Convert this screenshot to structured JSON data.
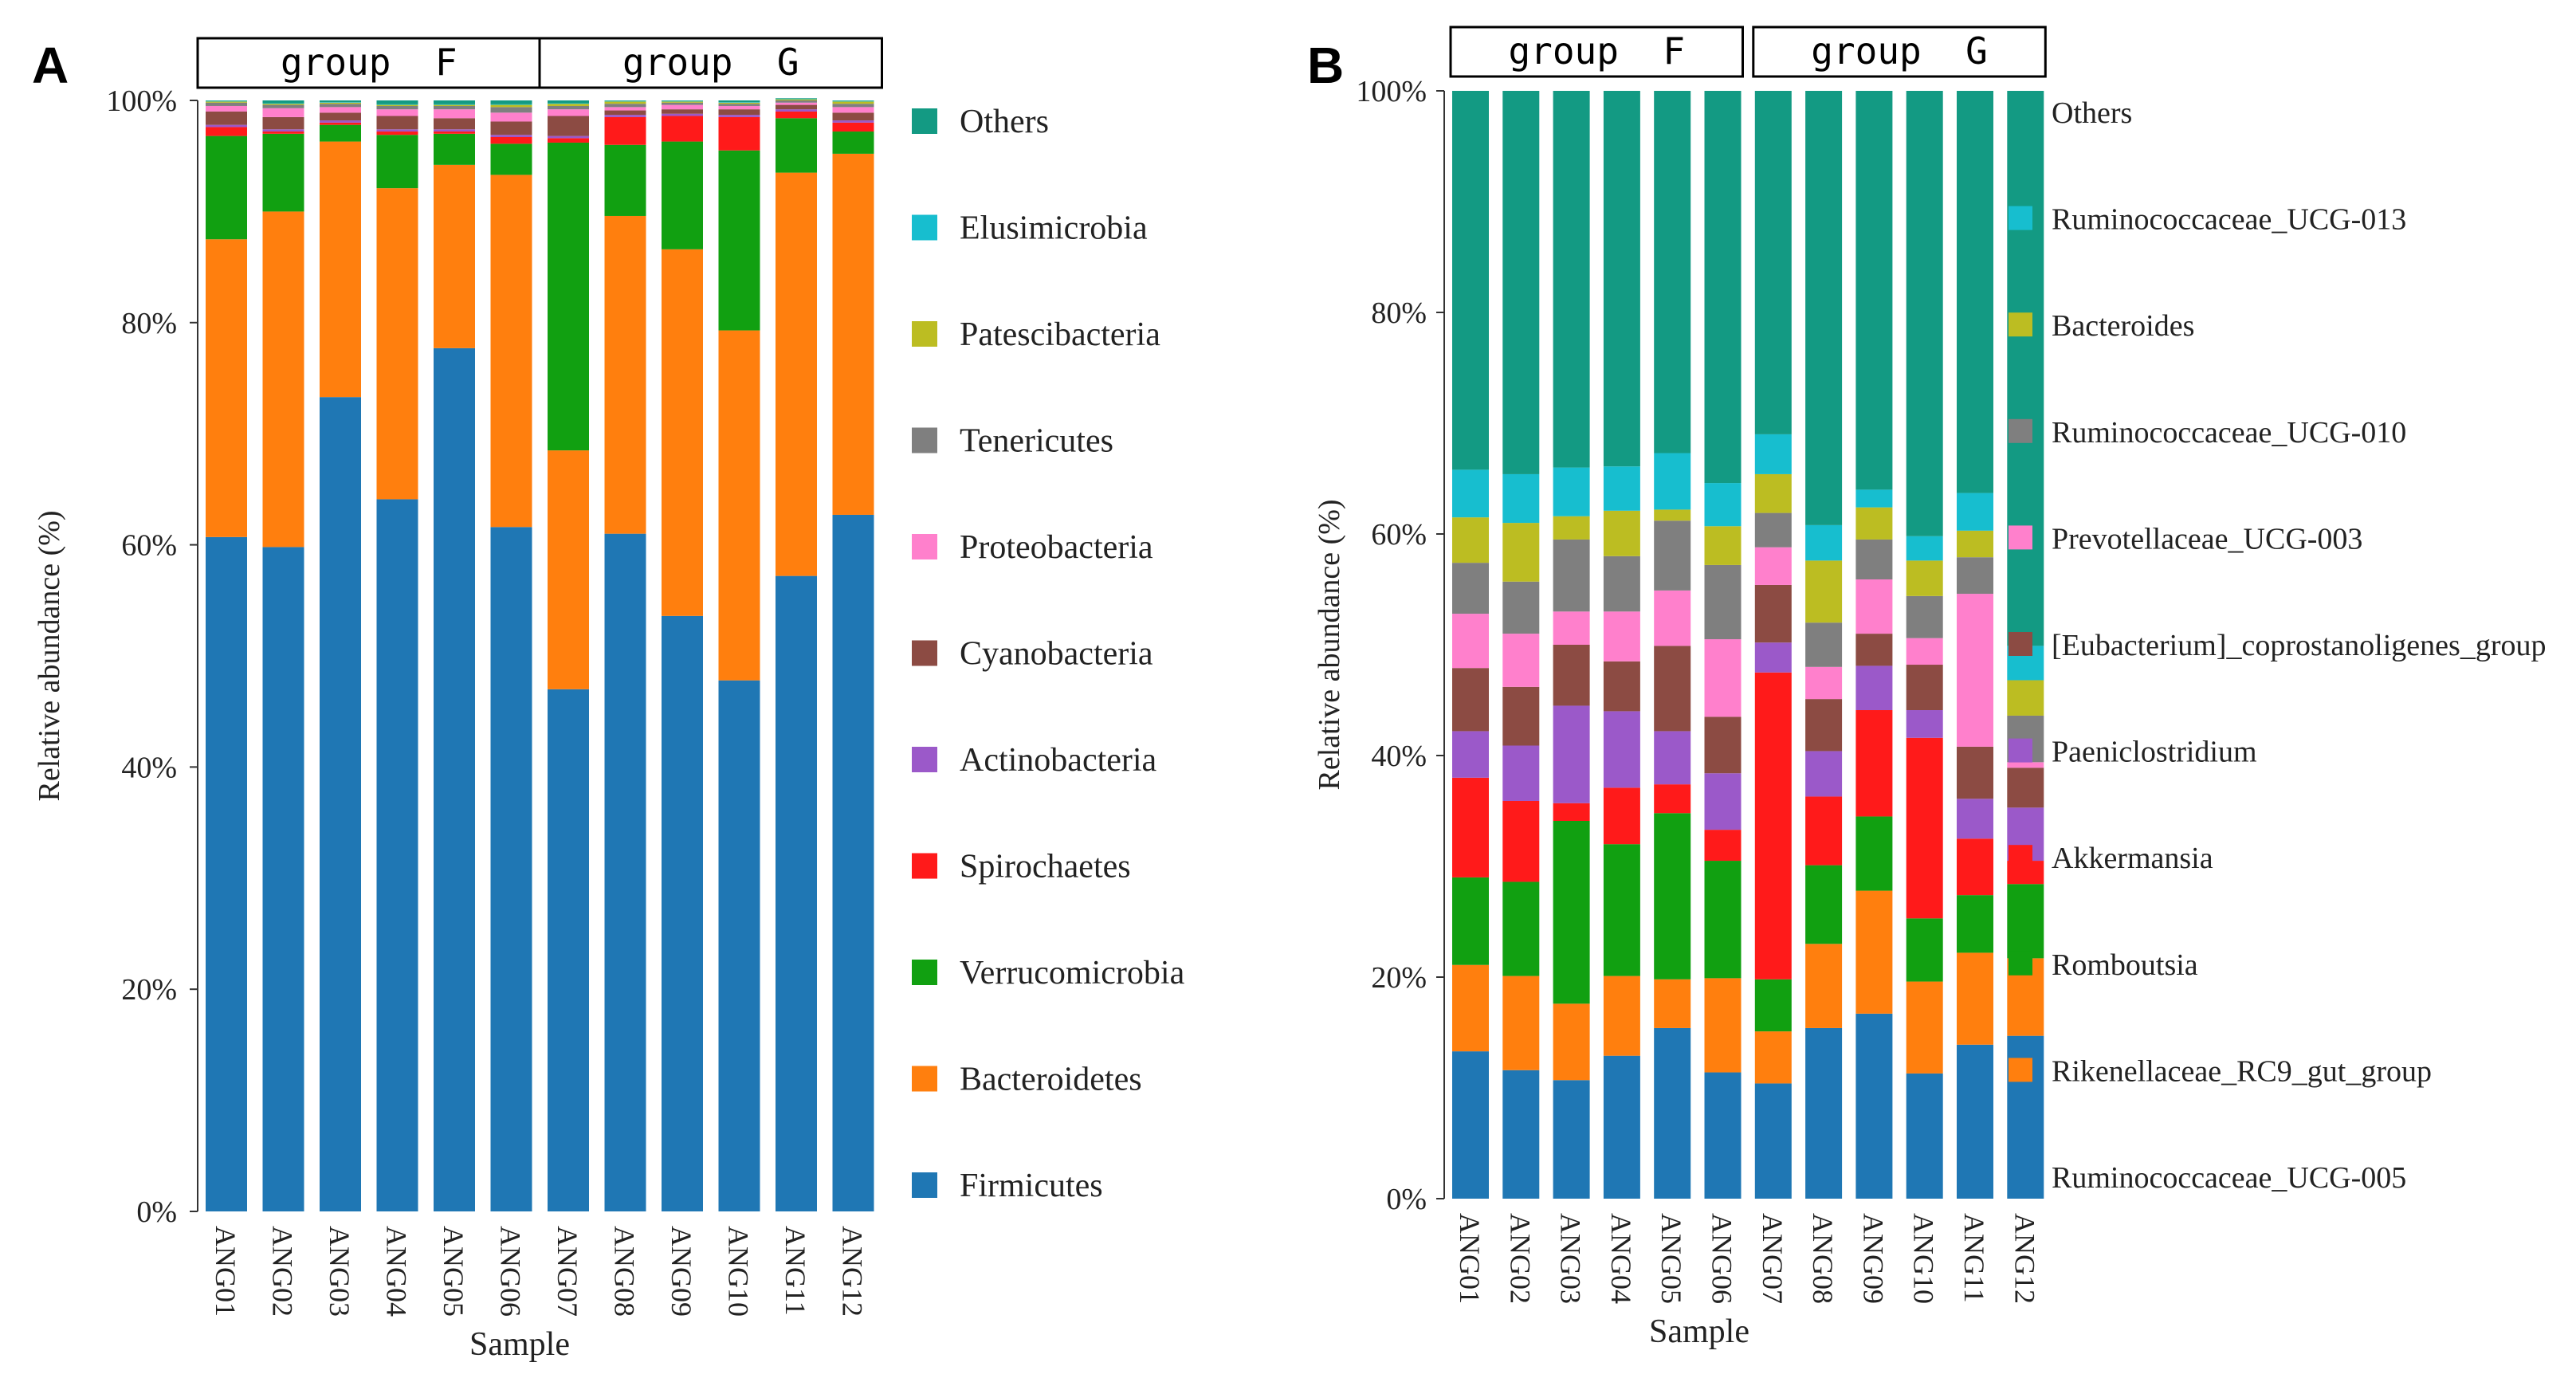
{
  "chart_data": [
    {
      "panel": "A",
      "type": "bar",
      "stacked": true,
      "xlabel": "Sample",
      "ylabel": "Relative abundance (%)",
      "ylim": [
        0,
        100
      ],
      "yticks": [
        "0%",
        "20%",
        "40%",
        "60%",
        "80%",
        "100%"
      ],
      "groups": [
        {
          "label": "group  F",
          "samples": [
            "ANG01",
            "ANG02",
            "ANG03",
            "ANG04",
            "ANG05",
            "ANG06"
          ]
        },
        {
          "label": "group  G",
          "samples": [
            "ANG07",
            "ANG08",
            "ANG09",
            "ANG10",
            "ANG11",
            "ANG12"
          ]
        }
      ],
      "categories": [
        "ANG01",
        "ANG02",
        "ANG03",
        "ANG04",
        "ANG05",
        "ANG06",
        "ANG07",
        "ANG08",
        "ANG09",
        "ANG10",
        "ANG11",
        "ANG12"
      ],
      "series": [
        {
          "name": "Firmicutes",
          "color": "#1f77b4",
          "values": [
            60.7,
            59.8,
            73.3,
            64.1,
            77.7,
            61.6,
            47.0,
            61.0,
            53.6,
            47.8,
            57.2,
            62.7
          ]
        },
        {
          "name": "Bacteroidetes",
          "color": "#ff7f0e",
          "values": [
            26.8,
            30.2,
            23.0,
            28.0,
            16.5,
            31.7,
            21.5,
            28.6,
            33.0,
            31.5,
            36.3,
            32.5
          ]
        },
        {
          "name": "Verrucomicrobia",
          "color": "#11a011",
          "values": [
            9.3,
            7.0,
            1.5,
            4.8,
            2.8,
            2.8,
            27.7,
            6.4,
            9.7,
            16.2,
            4.9,
            2.0
          ]
        },
        {
          "name": "Spirochaetes",
          "color": "#ff1a1a",
          "values": [
            0.8,
            0.2,
            0.2,
            0.3,
            0.2,
            0.6,
            0.4,
            2.5,
            2.3,
            3.0,
            0.6,
            0.8
          ]
        },
        {
          "name": "Actinobacteria",
          "color": "#9b59c9",
          "values": [
            0.2,
            0.2,
            0.2,
            0.2,
            0.2,
            0.2,
            0.2,
            0.2,
            0.2,
            0.2,
            0.2,
            0.2
          ]
        },
        {
          "name": "Cyanobacteria",
          "color": "#8c4b43",
          "values": [
            1.2,
            1.1,
            0.7,
            1.2,
            1.0,
            1.2,
            1.8,
            0.4,
            0.4,
            0.5,
            0.4,
            0.7
          ]
        },
        {
          "name": "Proteobacteria",
          "color": "#ff80cc",
          "values": [
            0.5,
            0.8,
            0.5,
            0.6,
            0.8,
            0.8,
            0.6,
            0.3,
            0.4,
            0.3,
            0.2,
            0.5
          ]
        },
        {
          "name": "Tenericutes",
          "color": "#7f7f7f",
          "values": [
            0.3,
            0.3,
            0.3,
            0.3,
            0.3,
            0.5,
            0.3,
            0.3,
            0.2,
            0.2,
            0.2,
            0.3
          ]
        },
        {
          "name": "Patescibacteria",
          "color": "#bcbd22",
          "values": [
            0.1,
            0.1,
            0.1,
            0.1,
            0.1,
            0.2,
            0.2,
            0.2,
            0.1,
            0.1,
            0.1,
            0.2
          ]
        },
        {
          "name": "Elusimicrobia",
          "color": "#17becf",
          "values": [
            0.05,
            0.05,
            0.05,
            0.05,
            0.05,
            0.05,
            0.05,
            0.05,
            0.05,
            0.05,
            0.05,
            0.05
          ]
        },
        {
          "name": "Others",
          "color": "#139a83",
          "values": [
            0.05,
            0.25,
            0.15,
            0.35,
            0.35,
            0.35,
            0.25,
            0.05,
            0.05,
            0.15,
            0.05,
            0.05
          ]
        }
      ]
    },
    {
      "panel": "B",
      "type": "bar",
      "stacked": true,
      "xlabel": "Sample",
      "ylabel": "Relative abundance (%)",
      "ylim": [
        0,
        100
      ],
      "yticks": [
        "0%",
        "20%",
        "40%",
        "60%",
        "80%",
        "100%"
      ],
      "groups": [
        {
          "label": "group  F",
          "samples": [
            "ANG01",
            "ANG02",
            "ANG03",
            "ANG04",
            "ANG05",
            "ANG06"
          ]
        },
        {
          "label": "group  G",
          "samples": [
            "ANG07",
            "ANG08",
            "ANG09",
            "ANG10",
            "ANG11",
            "ANG12"
          ]
        }
      ],
      "categories": [
        "ANG01",
        "ANG02",
        "ANG03",
        "ANG04",
        "ANG05",
        "ANG06",
        "ANG07",
        "ANG08",
        "ANG09",
        "ANG10",
        "ANG11",
        "ANG12"
      ],
      "series": [
        {
          "name": "Ruminococcaceae_UCG-005",
          "color": "#1f77b4",
          "values": [
            13.3,
            11.6,
            10.7,
            12.9,
            15.4,
            11.4,
            10.4,
            15.4,
            16.7,
            11.3,
            13.9,
            14.7
          ]
        },
        {
          "name": "Rikenellaceae_RC9_gut_group",
          "color": "#ff7f0e",
          "values": [
            7.8,
            8.5,
            6.9,
            7.2,
            4.4,
            8.5,
            4.7,
            7.6,
            11.1,
            8.3,
            8.3,
            7.0
          ]
        },
        {
          "name": "Romboutsia",
          "color": "#11a011",
          "values": [
            7.9,
            8.5,
            16.5,
            11.9,
            15.0,
            10.6,
            4.7,
            7.1,
            6.7,
            5.7,
            5.2,
            6.7
          ]
        },
        {
          "name": "Akkermansia",
          "color": "#ff1a1a",
          "values": [
            9.0,
            7.3,
            1.6,
            5.1,
            2.6,
            2.8,
            27.7,
            6.2,
            9.6,
            16.3,
            5.1,
            2.1
          ]
        },
        {
          "name": "Paeniclostridium",
          "color": "#9b59c9",
          "values": [
            4.2,
            5.0,
            8.8,
            6.9,
            4.8,
            5.1,
            2.7,
            4.1,
            4.0,
            2.5,
            3.6,
            4.8
          ]
        },
        {
          "name": "[Eubacterium]_coprostanoligenes_group",
          "color": "#8c4b43",
          "values": [
            5.7,
            5.3,
            5.5,
            4.5,
            7.7,
            5.1,
            5.2,
            4.7,
            2.9,
            4.1,
            4.7,
            3.6
          ]
        },
        {
          "name": "Prevotellaceae_UCG-003",
          "color": "#ff80cc",
          "values": [
            4.9,
            4.8,
            3.0,
            4.5,
            5.0,
            7.0,
            3.4,
            2.9,
            4.9,
            2.4,
            13.8,
            0.5
          ]
        },
        {
          "name": "Ruminococcaceae_UCG-010",
          "color": "#7f7f7f",
          "values": [
            4.6,
            4.7,
            6.5,
            5.0,
            6.3,
            6.7,
            3.1,
            4.0,
            3.6,
            3.8,
            3.3,
            4.2
          ]
        },
        {
          "name": "Bacteroides",
          "color": "#bcbd22",
          "values": [
            4.1,
            5.3,
            2.1,
            4.1,
            1.0,
            3.5,
            3.5,
            5.6,
            2.9,
            3.2,
            2.4,
            3.2
          ]
        },
        {
          "name": "Ruminococcaceae_UCG-013",
          "color": "#17becf",
          "values": [
            4.3,
            4.4,
            4.4,
            4.0,
            5.1,
            3.9,
            3.6,
            3.2,
            1.6,
            2.2,
            3.4,
            3.1
          ]
        },
        {
          "name": "Others",
          "color": "#139a83",
          "values": [
            34.2,
            34.6,
            34.0,
            33.9,
            32.7,
            35.4,
            31.0,
            39.2,
            36.0,
            40.2,
            36.3,
            50.1
          ]
        }
      ]
    }
  ]
}
